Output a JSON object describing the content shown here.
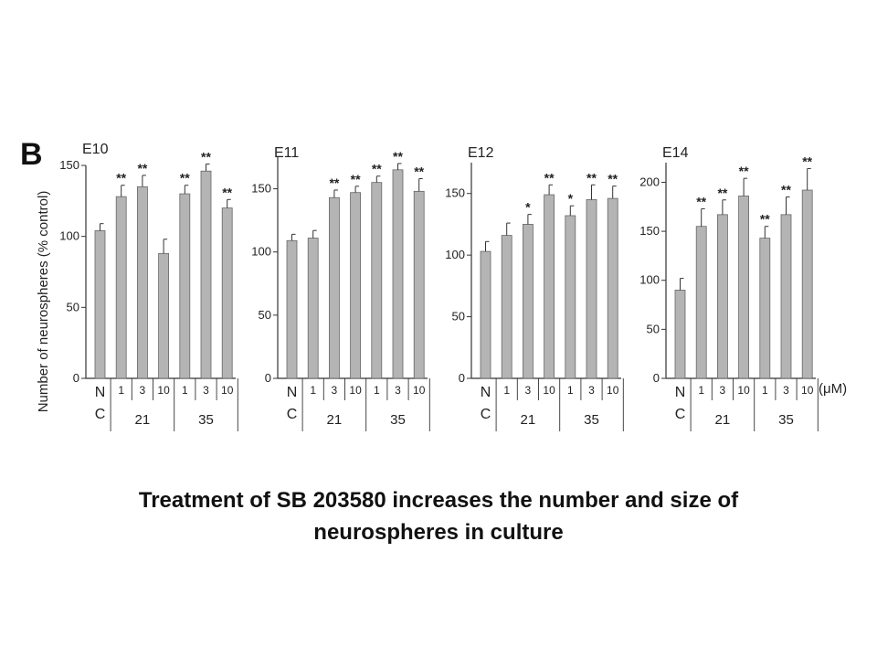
{
  "panel_label": "B",
  "y_axis_label": "Number of neurospheres (% control)",
  "unit_label": "(μM)",
  "caption_line1": "Treatment of SB 203580 increases the number and size of",
  "caption_line2": "neurospheres in culture",
  "colors": {
    "bar": "#b4b4b4",
    "stroke": "#333333"
  },
  "chart_data": [
    {
      "type": "bar",
      "title": "E10",
      "ylim": [
        0,
        150
      ],
      "yticks": [
        0,
        50,
        100,
        150
      ],
      "control_label": [
        "N",
        "C"
      ],
      "groups": [
        {
          "label": "21",
          "doses": [
            "1",
            "3",
            "10"
          ]
        },
        {
          "label": "35",
          "doses": [
            "1",
            "3",
            "10"
          ]
        }
      ],
      "values": [
        104,
        128,
        135,
        88,
        130,
        146,
        120
      ],
      "errors": [
        5,
        8,
        8,
        10,
        6,
        5,
        6
      ],
      "significance": [
        "",
        "**",
        "**",
        "",
        "**",
        "**",
        "**"
      ]
    },
    {
      "type": "bar",
      "title": "E11",
      "ylim": [
        0,
        175
      ],
      "yticks": [
        0,
        50,
        100,
        150
      ],
      "control_label": [
        "N",
        "C"
      ],
      "groups": [
        {
          "label": "21",
          "doses": [
            "1",
            "3",
            "10"
          ]
        },
        {
          "label": "35",
          "doses": [
            "1",
            "3",
            "10"
          ]
        }
      ],
      "values": [
        109,
        111,
        143,
        147,
        155,
        165,
        148
      ],
      "errors": [
        5,
        6,
        6,
        5,
        5,
        5,
        10
      ],
      "significance": [
        "",
        "",
        "**",
        "**",
        "**",
        "**",
        "**"
      ]
    },
    {
      "type": "bar",
      "title": "E12",
      "ylim": [
        0,
        175
      ],
      "yticks": [
        0,
        50,
        100,
        150
      ],
      "control_label": [
        "N",
        "C"
      ],
      "groups": [
        {
          "label": "21",
          "doses": [
            "1",
            "3",
            "10"
          ]
        },
        {
          "label": "35",
          "doses": [
            "1",
            "3",
            "10"
          ]
        }
      ],
      "values": [
        103,
        116,
        125,
        149,
        132,
        145,
        146
      ],
      "errors": [
        8,
        10,
        8,
        8,
        8,
        12,
        10
      ],
      "significance": [
        "",
        "",
        "*",
        "**",
        "*",
        "**",
        "**"
      ]
    },
    {
      "type": "bar",
      "title": "E14",
      "ylim": [
        0,
        220
      ],
      "yticks": [
        0,
        50,
        100,
        150,
        200
      ],
      "control_label": [
        "N",
        "C"
      ],
      "groups": [
        {
          "label": "21",
          "doses": [
            "1",
            "3",
            "10"
          ]
        },
        {
          "label": "35",
          "doses": [
            "1",
            "3",
            "10"
          ]
        }
      ],
      "values": [
        90,
        155,
        167,
        186,
        143,
        167,
        192
      ],
      "errors": [
        12,
        18,
        15,
        18,
        12,
        18,
        22
      ],
      "significance": [
        "",
        "**",
        "**",
        "**",
        "**",
        "**",
        "**"
      ]
    }
  ]
}
